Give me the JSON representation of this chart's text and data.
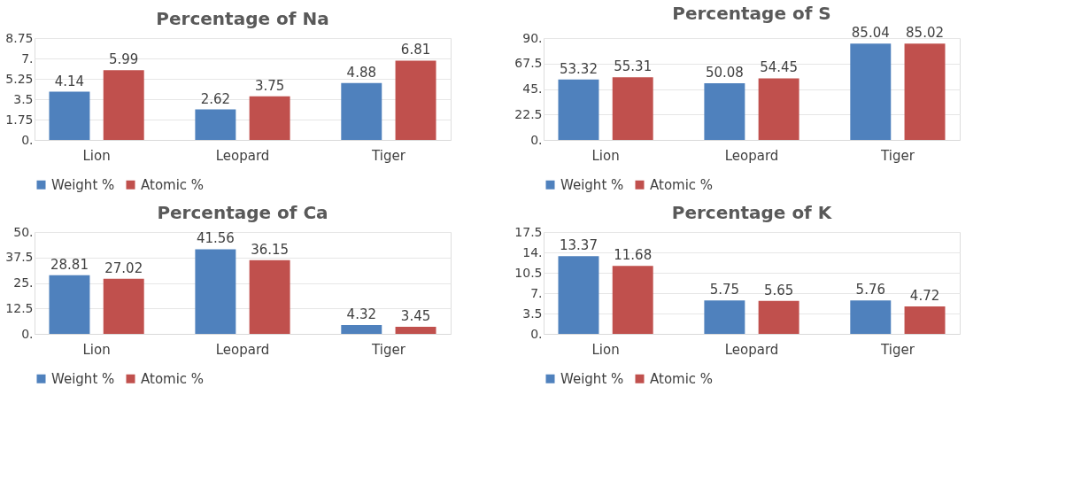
{
  "chart_data": [
    {
      "type": "bar",
      "title": "Percentage of Na",
      "categories": [
        "Lion",
        "Leopard",
        "Tiger"
      ],
      "ylim": [
        0,
        8.75
      ],
      "yticks": [
        {
          "value": 0,
          "label": "0."
        },
        1.75,
        3.5,
        5.25,
        {
          "value": 7,
          "label": "7."
        },
        8.75
      ],
      "grid": "y",
      "legend": "bottom",
      "data_labels": true,
      "series": [
        {
          "name": "Weight %",
          "color": "#4f81bd",
          "values": [
            4.14,
            2.62,
            4.88
          ]
        },
        {
          "name": "Atomic %",
          "color": "#c0504d",
          "values": [
            5.99,
            3.75,
            6.81
          ]
        }
      ]
    },
    {
      "type": "bar",
      "title": "Percentage of S",
      "categories": [
        "Lion",
        "Leopard",
        "Tiger"
      ],
      "ylim": [
        0,
        90
      ],
      "yticks": [
        {
          "value": 0,
          "label": "0."
        },
        22.5,
        {
          "value": 45,
          "label": "45."
        },
        67.5,
        {
          "value": 90,
          "label": "90."
        }
      ],
      "grid": "y",
      "legend": "bottom",
      "data_labels": true,
      "series": [
        {
          "name": "Weight %",
          "color": "#4f81bd",
          "values": [
            53.32,
            50.08,
            85.04
          ]
        },
        {
          "name": "Atomic %",
          "color": "#c0504d",
          "values": [
            55.31,
            54.45,
            85.02
          ]
        }
      ]
    },
    {
      "type": "bar",
      "title": "Percentage of Ca",
      "categories": [
        "Lion",
        "Leopard",
        "Tiger"
      ],
      "ylim": [
        0,
        50
      ],
      "yticks": [
        {
          "value": 0,
          "label": "0."
        },
        12.5,
        {
          "value": 25,
          "label": "25."
        },
        37.5,
        {
          "value": 50,
          "label": "50."
        }
      ],
      "grid": "y",
      "legend": "bottom",
      "data_labels": true,
      "series": [
        {
          "name": "Weight %",
          "color": "#4f81bd",
          "values": [
            28.81,
            41.56,
            4.32
          ]
        },
        {
          "name": "Atomic %",
          "color": "#c0504d",
          "values": [
            27.02,
            36.15,
            3.45
          ]
        }
      ]
    },
    {
      "type": "bar",
      "title": "Percentage of K",
      "categories": [
        "Lion",
        "Leopard",
        "Tiger"
      ],
      "ylim": [
        0,
        17.5
      ],
      "yticks": [
        {
          "value": 0,
          "label": "0."
        },
        3.5,
        {
          "value": 7,
          "label": "7."
        },
        10.5,
        {
          "value": 14,
          "label": "14."
        },
        17.5
      ],
      "grid": "y",
      "legend": "bottom",
      "data_labels": true,
      "series": [
        {
          "name": "Weight %",
          "color": "#4f81bd",
          "values": [
            13.37,
            5.75,
            5.76
          ]
        },
        {
          "name": "Atomic %",
          "color": "#c0504d",
          "values": [
            11.68,
            5.65,
            4.72
          ]
        }
      ]
    }
  ]
}
